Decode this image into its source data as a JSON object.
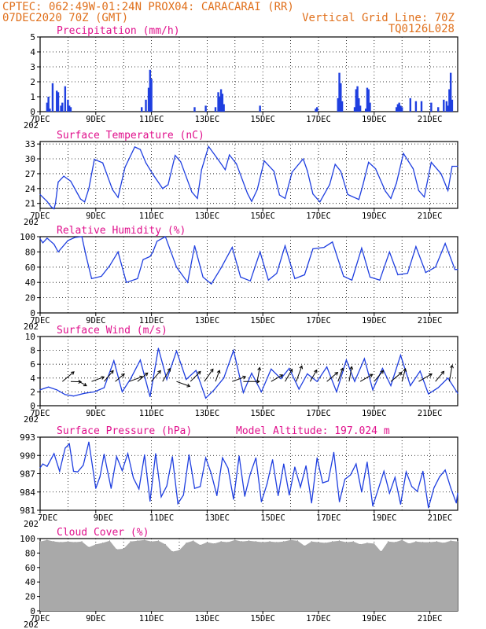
{
  "header": {
    "line1_left": "CPTEC:   062:49W-01:24N  PROX04: CARACARAI (RR)",
    "line2_left": "07DEC2020 70Z (GMT)",
    "line2_right": "Vertical Grid Line: 70Z",
    "line3_right": "TQ0126L028"
  },
  "colors": {
    "header": "#e0701c",
    "title": "#e0108c",
    "line": "#1f3fe0",
    "cloud": "#a9a9a9"
  },
  "x_axis": {
    "tick_labels": [
      "7DEC",
      "9DEC",
      "11DEC",
      "13DEC",
      "15DEC",
      "17DEC",
      "19DEC",
      "21DEC"
    ],
    "tick_days": [
      0,
      2,
      4,
      6,
      8,
      10,
      12,
      14
    ],
    "range_days": [
      0,
      15
    ],
    "stub_label": "202"
  },
  "chart_data": [
    {
      "type": "bar",
      "title": "Precipitation (mm/h)",
      "ylim": [
        0,
        5
      ],
      "yticks": [
        0,
        1,
        2,
        3,
        4,
        5
      ],
      "x_days": [
        0.25,
        0.3,
        0.35,
        0.45,
        0.6,
        0.65,
        0.75,
        0.8,
        0.9,
        1.0,
        1.05,
        1.1,
        3.65,
        3.8,
        3.9,
        3.95,
        4.0,
        5.55,
        5.95,
        6.3,
        6.4,
        6.45,
        6.5,
        6.55,
        6.6,
        7.9,
        9.9,
        9.95,
        10.7,
        10.75,
        10.8,
        10.85,
        11.3,
        11.35,
        11.4,
        11.45,
        11.5,
        11.7,
        11.75,
        11.8,
        11.85,
        12.8,
        12.85,
        12.9,
        12.95,
        13.0,
        13.3,
        13.5,
        13.7,
        14.05,
        14.3,
        14.5,
        14.6,
        14.65,
        14.7,
        14.75,
        14.8
      ],
      "values": [
        0.6,
        1.0,
        0.2,
        1.9,
        1.4,
        1.3,
        0.4,
        0.6,
        1.7,
        0.8,
        0.4,
        0.3,
        0.3,
        0.8,
        1.6,
        2.8,
        2.2,
        0.3,
        0.4,
        0.3,
        1.3,
        1.0,
        1.5,
        1.2,
        0.5,
        0.4,
        0.2,
        0.3,
        0.9,
        2.6,
        1.9,
        0.7,
        0.3,
        1.5,
        1.7,
        0.9,
        0.4,
        0.2,
        1.6,
        1.5,
        0.6,
        0.3,
        0.5,
        0.6,
        0.4,
        0.3,
        0.9,
        0.7,
        0.7,
        0.6,
        0.3,
        0.8,
        0.7,
        0.4,
        1.5,
        2.6,
        0.8
      ]
    },
    {
      "type": "line",
      "title": "Surface Temperature (nC)",
      "ylim": [
        20,
        33.5
      ],
      "yticks": [
        21,
        24,
        27,
        30,
        33
      ],
      "x_days": [
        0,
        0.25,
        0.4,
        0.5,
        0.55,
        0.65,
        0.85,
        1.1,
        1.45,
        1.6,
        1.75,
        1.95,
        2.25,
        2.6,
        2.8,
        3.05,
        3.4,
        3.6,
        3.8,
        4.05,
        4.4,
        4.6,
        4.85,
        5.05,
        5.45,
        5.65,
        5.8,
        6.05,
        6.4,
        6.65,
        6.8,
        7.05,
        7.45,
        7.6,
        7.8,
        8.05,
        8.4,
        8.6,
        8.8,
        9.05,
        9.45,
        9.6,
        9.8,
        10.05,
        10.4,
        10.6,
        10.8,
        11.05,
        11.45,
        11.6,
        11.8,
        12.05,
        12.4,
        12.6,
        12.8,
        13.05,
        13.4,
        13.6,
        13.8,
        14.05,
        14.4,
        14.65,
        14.8,
        15
      ],
      "values": [
        22.8,
        21.4,
        20.3,
        19.9,
        21.0,
        25.3,
        26.5,
        25.5,
        21.9,
        21.3,
        24.0,
        29.9,
        29.2,
        23.8,
        22.2,
        28.3,
        32.4,
        31.9,
        29.2,
        26.9,
        24.0,
        24.8,
        30.7,
        29.4,
        23.3,
        22.0,
        27.8,
        32.5,
        29.8,
        27.8,
        30.8,
        29.0,
        23.0,
        21.4,
        23.8,
        29.6,
        27.5,
        22.7,
        22.0,
        27.3,
        30.0,
        27.6,
        22.9,
        21.3,
        24.8,
        28.9,
        27.5,
        22.8,
        21.8,
        24.8,
        29.3,
        28.0,
        23.5,
        22.0,
        25.1,
        31.1,
        28.0,
        23.6,
        22.3,
        29.3,
        27.0,
        23.6,
        28.5,
        28.5
      ]
    },
    {
      "type": "line",
      "title": "Relative Humidity (%)",
      "ylim": [
        0,
        100
      ],
      "yticks": [
        0,
        20,
        40,
        60,
        80,
        100
      ],
      "x_days": [
        0,
        0.1,
        0.25,
        0.5,
        0.65,
        1.0,
        1.25,
        1.5,
        1.65,
        1.85,
        2.2,
        2.5,
        2.8,
        3.1,
        3.5,
        3.7,
        3.95,
        4.05,
        4.2,
        4.5,
        4.9,
        5.3,
        5.55,
        5.85,
        6.15,
        6.5,
        6.9,
        7.2,
        7.55,
        7.9,
        8.2,
        8.5,
        8.8,
        9.15,
        9.5,
        9.8,
        10.2,
        10.5,
        10.9,
        11.2,
        11.55,
        11.85,
        12.2,
        12.55,
        12.85,
        13.2,
        13.5,
        13.85,
        14.2,
        14.55,
        14.9,
        15
      ],
      "values": [
        97,
        92,
        98,
        90,
        80,
        95,
        99,
        100,
        75,
        45,
        48,
        62,
        80,
        40,
        45,
        70,
        74,
        80,
        94,
        100,
        60,
        40,
        88,
        47,
        38,
        59,
        86,
        47,
        42,
        80,
        43,
        52,
        88,
        45,
        50,
        84,
        86,
        93,
        48,
        43,
        85,
        47,
        43,
        80,
        50,
        52,
        87,
        53,
        60,
        91,
        57,
        57
      ]
    },
    {
      "type": "line",
      "title": "Surface Wind (m/s)",
      "ylim": [
        0,
        10
      ],
      "yticks": [
        0,
        2,
        4,
        6,
        8,
        10
      ],
      "x_days": [
        0,
        0.3,
        0.6,
        0.9,
        1.2,
        1.6,
        1.95,
        2.3,
        2.65,
        2.95,
        3.25,
        3.6,
        3.95,
        4.25,
        4.55,
        4.9,
        5.25,
        5.6,
        5.95,
        6.25,
        6.6,
        6.95,
        7.3,
        7.6,
        7.95,
        8.3,
        8.65,
        8.95,
        9.3,
        9.6,
        9.95,
        10.3,
        10.65,
        11.0,
        11.3,
        11.65,
        11.95,
        12.3,
        12.6,
        12.95,
        13.3,
        13.65,
        13.95,
        14.3,
        14.65,
        15
      ],
      "values": [
        2.3,
        2.7,
        2.3,
        1.6,
        1.4,
        1.8,
        2.0,
        2.6,
        6.5,
        2.0,
        3.9,
        6.6,
        1.3,
        8.3,
        3.8,
        7.9,
        3.8,
        5.1,
        1.1,
        2.3,
        4.0,
        8.0,
        1.9,
        4.7,
        2.0,
        5.3,
        3.9,
        5.4,
        2.4,
        4.6,
        3.5,
        5.6,
        2.0,
        6.6,
        3.5,
        6.8,
        2.3,
        5.4,
        2.9,
        7.3,
        2.9,
        5.0,
        1.7,
        2.6,
        4.0,
        1.8
      ]
    },
    {
      "type": "line",
      "title": "Surface Pressure (hPa)",
      "subtitle": "Model Altitude: 197.024 m",
      "ylim": [
        981,
        993
      ],
      "yticks": [
        981,
        984,
        987,
        990,
        993
      ],
      "x_days": [
        0,
        0.1,
        0.25,
        0.5,
        0.7,
        0.9,
        1.05,
        1.2,
        1.35,
        1.55,
        1.75,
        2.0,
        2.15,
        2.3,
        2.55,
        2.75,
        2.95,
        3.15,
        3.35,
        3.55,
        3.75,
        3.95,
        4.15,
        4.35,
        4.55,
        4.75,
        4.95,
        5.15,
        5.35,
        5.55,
        5.75,
        5.95,
        6.15,
        6.35,
        6.55,
        6.75,
        6.95,
        7.15,
        7.35,
        7.55,
        7.75,
        7.95,
        8.15,
        8.35,
        8.55,
        8.75,
        8.95,
        9.15,
        9.35,
        9.55,
        9.75,
        9.95,
        10.15,
        10.35,
        10.55,
        10.75,
        10.95,
        11.15,
        11.35,
        11.55,
        11.75,
        11.95,
        12.15,
        12.35,
        12.55,
        12.75,
        12.95,
        13.15,
        13.35,
        13.55,
        13.75,
        13.95,
        14.15,
        14.35,
        14.55,
        14.75,
        14.95,
        15
      ],
      "values": [
        988,
        988.6,
        988.2,
        990.3,
        987.4,
        991.2,
        991.9,
        987.4,
        987.3,
        988.4,
        992.2,
        984.6,
        986.5,
        990.2,
        984.6,
        989.8,
        987.5,
        990.3,
        986.3,
        984.5,
        990.1,
        982.5,
        990.3,
        983.2,
        985.0,
        989.8,
        982.1,
        983.5,
        990.1,
        984.6,
        984.9,
        989.6,
        987.0,
        983.4,
        989.6,
        987.9,
        982.8,
        989.9,
        983.3,
        987.0,
        989.6,
        982.4,
        985.3,
        989.3,
        983.4,
        988.6,
        983.5,
        988.1,
        984.8,
        988.3,
        982.2,
        989.6,
        985.5,
        985.8,
        990.5,
        982.4,
        986.1,
        986.8,
        988.6,
        984.0,
        988.9,
        981.7,
        984.5,
        987.4,
        983.8,
        986.4,
        982.0,
        987.3,
        984.9,
        984.1,
        987.4,
        981.4,
        984.7,
        986.5,
        987.6,
        984.7,
        982.2,
        983.8
      ]
    },
    {
      "type": "area",
      "title": "Cloud Cover (%)",
      "ylim": [
        0,
        100
      ],
      "yticks": [
        0,
        20,
        40,
        60,
        80,
        100
      ],
      "x_days": [
        0,
        0.25,
        0.5,
        0.75,
        1.0,
        1.25,
        1.5,
        1.75,
        2.0,
        2.25,
        2.5,
        2.75,
        3.0,
        3.25,
        3.5,
        3.75,
        4.0,
        4.25,
        4.5,
        4.75,
        5.0,
        5.25,
        5.5,
        5.75,
        6.0,
        6.25,
        6.5,
        6.75,
        7.0,
        7.25,
        7.5,
        7.75,
        8.0,
        8.25,
        8.5,
        8.75,
        9.0,
        9.25,
        9.5,
        9.75,
        10.0,
        10.25,
        10.5,
        10.75,
        11.0,
        11.25,
        11.5,
        11.75,
        12.0,
        12.25,
        12.5,
        12.75,
        13.0,
        13.25,
        13.5,
        13.75,
        14.0,
        14.25,
        14.5,
        14.75,
        15
      ],
      "values": [
        96,
        98,
        96,
        95,
        96,
        95,
        96,
        88,
        92,
        94,
        97,
        85,
        86,
        96,
        97,
        98,
        96,
        97,
        92,
        82,
        84,
        94,
        97,
        91,
        95,
        93,
        96,
        95,
        98,
        96,
        97,
        96,
        95,
        96,
        95,
        96,
        98,
        97,
        90,
        96,
        95,
        94,
        96,
        97,
        95,
        96,
        92,
        94,
        93,
        82,
        96,
        95,
        98,
        93,
        96,
        95,
        95,
        96,
        94,
        97,
        96
      ]
    }
  ]
}
